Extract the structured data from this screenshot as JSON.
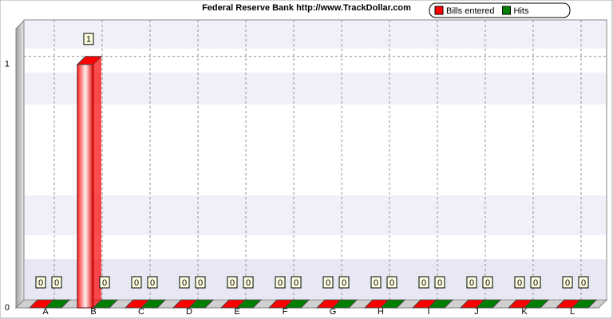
{
  "chart_data": {
    "type": "bar",
    "title": "Federal Reserve Bank  http://www.TrackDollar.com",
    "categories": [
      "A",
      "B",
      "C",
      "D",
      "E",
      "F",
      "G",
      "H",
      "I",
      "J",
      "K",
      "L"
    ],
    "series": [
      {
        "name": "Bills entered",
        "color": "#ff0000",
        "values": [
          0,
          1,
          0,
          0,
          0,
          0,
          0,
          0,
          0,
          0,
          0,
          0
        ]
      },
      {
        "name": "Hits",
        "color": "#008000",
        "values": [
          0,
          0,
          0,
          0,
          0,
          0,
          0,
          0,
          0,
          0,
          0,
          0
        ]
      }
    ],
    "ylim": [
      0,
      1.15
    ],
    "yticks": [
      0,
      1
    ],
    "grid": true
  }
}
